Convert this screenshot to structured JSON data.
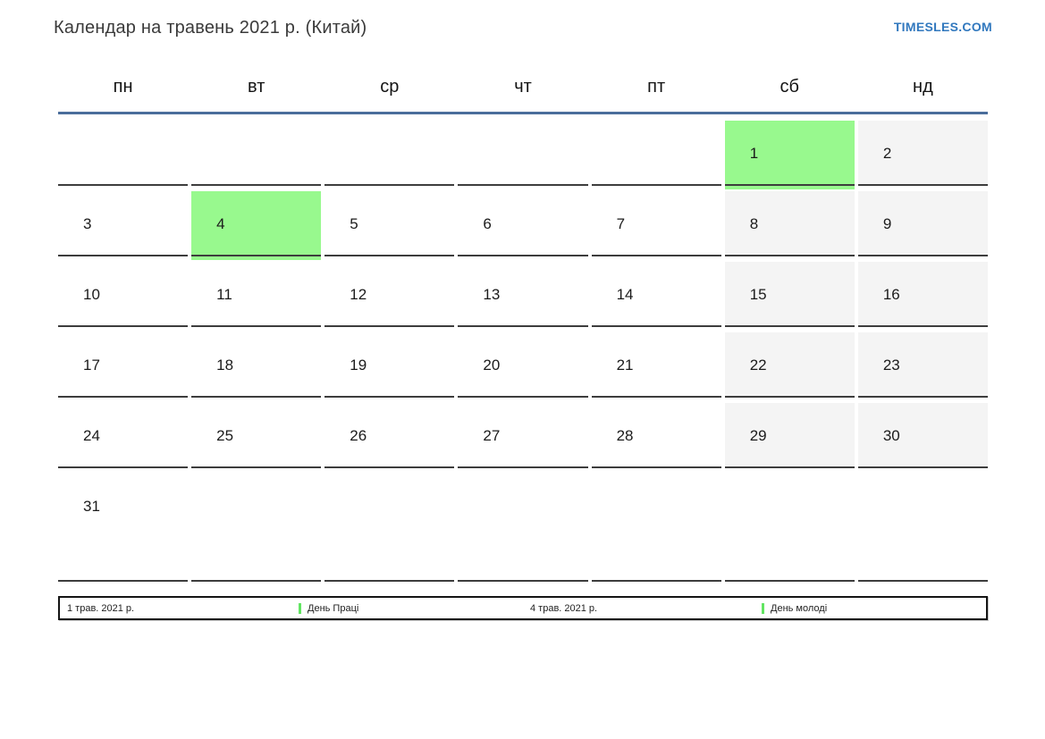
{
  "page": {
    "title": "Календар на травень 2021 р. (Китай)",
    "site_link": "TIMESLES.COM"
  },
  "colors": {
    "link_blue": "#3178be",
    "header_line_blue": "#4a6d9b",
    "holiday_green": "#98f98e",
    "weekend_gray": "#f4f4f4",
    "legend_marker_green": "#62e562",
    "cell_border_dark": "#3d3d3d"
  },
  "calendar": {
    "month_year": "травень 2021",
    "weekdays": [
      "пн",
      "вт",
      "ср",
      "чт",
      "пт",
      "сб",
      "нд"
    ],
    "weeks": [
      [
        {
          "n": ""
        },
        {
          "n": ""
        },
        {
          "n": ""
        },
        {
          "n": ""
        },
        {
          "n": ""
        },
        {
          "n": "1",
          "type": "holiday"
        },
        {
          "n": "2",
          "type": "weekend"
        }
      ],
      [
        {
          "n": "3"
        },
        {
          "n": "4",
          "type": "holiday"
        },
        {
          "n": "5"
        },
        {
          "n": "6"
        },
        {
          "n": "7"
        },
        {
          "n": "8",
          "type": "weekend"
        },
        {
          "n": "9",
          "type": "weekend"
        }
      ],
      [
        {
          "n": "10"
        },
        {
          "n": "11"
        },
        {
          "n": "12"
        },
        {
          "n": "13"
        },
        {
          "n": "14"
        },
        {
          "n": "15",
          "type": "weekend"
        },
        {
          "n": "16",
          "type": "weekend"
        }
      ],
      [
        {
          "n": "17"
        },
        {
          "n": "18"
        },
        {
          "n": "19"
        },
        {
          "n": "20"
        },
        {
          "n": "21"
        },
        {
          "n": "22",
          "type": "weekend"
        },
        {
          "n": "23",
          "type": "weekend"
        }
      ],
      [
        {
          "n": "24"
        },
        {
          "n": "25"
        },
        {
          "n": "26"
        },
        {
          "n": "27"
        },
        {
          "n": "28"
        },
        {
          "n": "29",
          "type": "weekend"
        },
        {
          "n": "30",
          "type": "weekend"
        }
      ],
      [
        {
          "n": "31"
        },
        {
          "n": ""
        },
        {
          "n": ""
        },
        {
          "n": ""
        },
        {
          "n": ""
        },
        {
          "n": ""
        },
        {
          "n": ""
        }
      ]
    ]
  },
  "legend": {
    "items": [
      {
        "date": "1 трав. 2021 р.",
        "label": "День Праці"
      },
      {
        "date": "4 трав. 2021 р.",
        "label": "День молоді"
      }
    ]
  }
}
